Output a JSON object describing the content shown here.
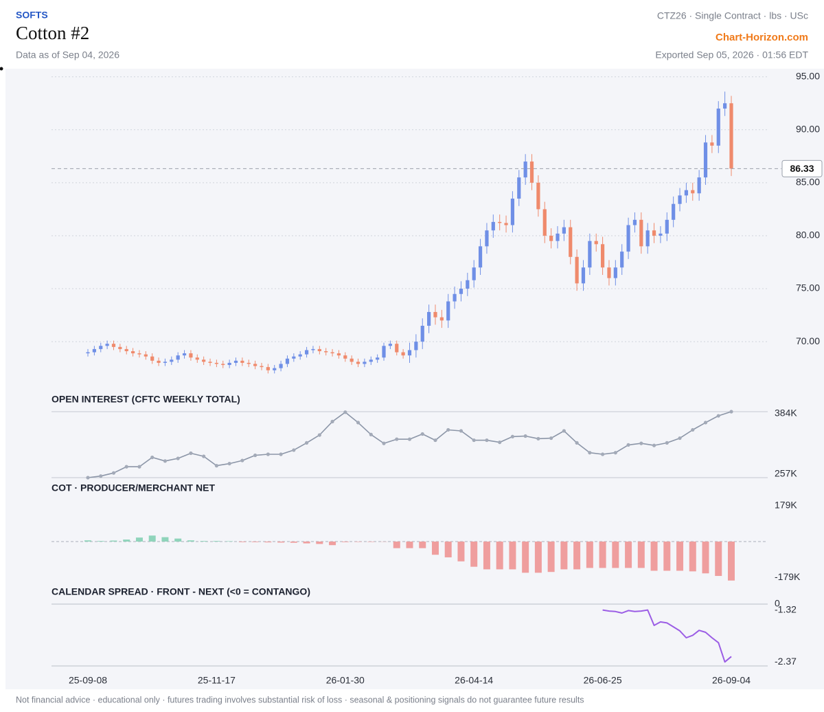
{
  "header": {
    "sector": "SOFTS",
    "title": "Cotton #2",
    "data_as_of": "Data as of Sep 04, 2026",
    "contract": "CTZ26 · Single Contract · lbs · USc",
    "brand": "Chart-Horizon.com",
    "exported": "Exported Sep 05, 2026 · 01:56 EDT"
  },
  "footer": "Not financial advice · educational only · futures trading involves substantial risk of loss · seasonal & positioning signals do not guarantee future results",
  "chart_data": [
    {
      "type": "candlestick",
      "categories": [
        "25-09-08",
        null,
        null,
        null,
        null,
        null,
        null,
        null,
        null,
        null,
        null,
        null,
        null,
        null,
        null,
        null,
        null,
        null,
        null,
        null,
        "25-11-17",
        null,
        null,
        null,
        null,
        null,
        null,
        null,
        null,
        null,
        null,
        null,
        null,
        null,
        null,
        null,
        null,
        null,
        null,
        null,
        "26-01-30",
        null,
        null,
        null,
        null,
        null,
        null,
        null,
        null,
        null,
        null,
        null,
        null,
        null,
        null,
        null,
        null,
        null,
        null,
        null,
        "26-04-14",
        null,
        null,
        null,
        null,
        null,
        null,
        null,
        null,
        null,
        null,
        null,
        null,
        null,
        null,
        null,
        null,
        null,
        null,
        null,
        "26-06-25",
        null,
        null,
        null,
        null,
        null,
        null,
        null,
        null,
        null,
        null,
        null,
        null,
        null,
        null,
        null,
        null,
        null,
        null,
        null,
        "26-09-04"
      ],
      "open": [
        68.9,
        69.0,
        69.3,
        69.6,
        69.8,
        69.5,
        69.3,
        69.1,
        68.9,
        68.8,
        68.6,
        68.2,
        68.0,
        68.1,
        68.3,
        68.7,
        68.9,
        68.5,
        68.3,
        68.1,
        68.0,
        67.9,
        67.8,
        68.0,
        68.2,
        68.0,
        67.9,
        67.7,
        67.6,
        67.3,
        67.5,
        67.9,
        68.4,
        68.6,
        68.8,
        69.2,
        69.3,
        69.1,
        69.0,
        68.9,
        68.7,
        68.4,
        68.1,
        67.9,
        68.1,
        68.3,
        68.5,
        69.6,
        69.8,
        69.0,
        68.7,
        69.2,
        70.0,
        71.5,
        72.8,
        72.3,
        72.0,
        73.8,
        74.5,
        75.0,
        75.8,
        77.0,
        79.0,
        80.5,
        81.3,
        81.2,
        81.0,
        83.5,
        85.5,
        87.0,
        85.0,
        82.5,
        80.0,
        79.5,
        80.2,
        80.8,
        78.0,
        75.5,
        77.0,
        79.5,
        79.2,
        77.0,
        76.0,
        77.0,
        78.5,
        81.0,
        81.5,
        79.0,
        80.5,
        80.0,
        80.2,
        81.5,
        83.0,
        83.8,
        84.3,
        84.0,
        85.5,
        88.8,
        88.5,
        92.0,
        92.5
      ],
      "high": [
        69.3,
        69.6,
        69.9,
        70.1,
        70.1,
        69.8,
        69.6,
        69.4,
        69.2,
        69.1,
        68.9,
        68.5,
        68.4,
        68.6,
        69.0,
        69.2,
        69.2,
        68.8,
        68.6,
        68.4,
        68.3,
        68.2,
        68.3,
        68.5,
        68.5,
        68.3,
        68.2,
        68.0,
        67.9,
        67.8,
        68.2,
        68.7,
        68.9,
        69.1,
        69.5,
        69.6,
        69.6,
        69.4,
        69.3,
        69.2,
        69.0,
        68.7,
        68.4,
        68.4,
        68.6,
        68.8,
        69.9,
        70.1,
        70.1,
        69.3,
        69.9,
        70.7,
        72.2,
        73.5,
        73.5,
        73.0,
        74.5,
        75.2,
        75.7,
        76.5,
        77.7,
        79.7,
        81.2,
        82.0,
        82.0,
        81.9,
        84.2,
        86.2,
        87.7,
        87.7,
        85.7,
        83.2,
        80.7,
        80.9,
        81.5,
        81.5,
        78.7,
        77.7,
        80.2,
        80.2,
        79.9,
        77.7,
        77.7,
        79.2,
        81.7,
        82.2,
        82.2,
        81.2,
        81.2,
        80.9,
        82.2,
        83.7,
        84.5,
        85.0,
        85.0,
        86.2,
        89.5,
        89.5,
        92.7,
        93.6,
        93.2
      ],
      "low": [
        68.6,
        68.7,
        69.0,
        69.3,
        69.2,
        69.0,
        68.8,
        68.6,
        68.5,
        68.3,
        67.9,
        67.7,
        67.7,
        67.8,
        68.0,
        68.4,
        68.2,
        68.0,
        67.8,
        67.7,
        67.6,
        67.5,
        67.5,
        67.7,
        67.7,
        67.6,
        67.4,
        67.3,
        67.0,
        67.0,
        67.2,
        67.6,
        68.1,
        68.3,
        68.5,
        68.9,
        68.8,
        68.7,
        68.6,
        68.4,
        68.1,
        67.8,
        67.6,
        67.6,
        67.8,
        68.0,
        68.2,
        69.3,
        68.7,
        68.4,
        68.0,
        68.5,
        69.3,
        70.8,
        71.6,
        71.3,
        71.3,
        73.1,
        73.8,
        74.3,
        75.1,
        76.3,
        78.3,
        79.8,
        80.5,
        80.3,
        80.3,
        82.8,
        84.8,
        84.3,
        81.8,
        79.3,
        78.8,
        78.8,
        79.5,
        77.3,
        74.8,
        74.8,
        76.3,
        78.5,
        76.3,
        75.3,
        75.3,
        76.3,
        77.8,
        80.3,
        78.3,
        78.3,
        79.3,
        79.3,
        79.5,
        80.8,
        82.3,
        83.1,
        83.3,
        83.3,
        84.8,
        87.8,
        87.8,
        91.3,
        85.63
      ],
      "close": [
        69.0,
        69.3,
        69.6,
        69.8,
        69.5,
        69.3,
        69.1,
        68.9,
        68.8,
        68.6,
        68.2,
        68.0,
        68.1,
        68.3,
        68.7,
        68.9,
        68.5,
        68.3,
        68.1,
        68.0,
        67.9,
        67.8,
        68.0,
        68.2,
        68.0,
        67.9,
        67.7,
        67.6,
        67.3,
        67.5,
        67.9,
        68.4,
        68.6,
        68.8,
        69.2,
        69.3,
        69.1,
        69.0,
        68.9,
        68.7,
        68.4,
        68.1,
        67.9,
        68.1,
        68.3,
        68.5,
        69.6,
        69.8,
        69.0,
        68.7,
        69.2,
        70.0,
        71.5,
        72.8,
        72.3,
        72.0,
        73.8,
        74.5,
        75.0,
        75.8,
        77.0,
        79.0,
        80.5,
        81.3,
        81.2,
        81.0,
        83.5,
        85.5,
        87.0,
        85.0,
        82.5,
        80.0,
        79.5,
        80.2,
        80.8,
        78.0,
        75.5,
        77.0,
        79.5,
        79.2,
        77.0,
        76.0,
        77.0,
        78.5,
        81.0,
        81.5,
        79.0,
        80.5,
        80.0,
        80.2,
        81.5,
        83.0,
        83.8,
        84.3,
        84.0,
        85.5,
        88.8,
        88.5,
        92.0,
        92.5,
        86.33
      ],
      "up_color": "#6f8fe6",
      "down_color": "#ef8a6c",
      "ylim": [
        66.7,
        95.5
      ],
      "yticks": [
        {
          "value": 70,
          "label": "70.00"
        },
        {
          "value": 75,
          "label": "75.00"
        },
        {
          "value": 80,
          "label": "80.00"
        },
        {
          "value": 85,
          "label": "85.00"
        },
        {
          "value": 90,
          "label": "90.00"
        },
        {
          "value": 95,
          "label": "95.00"
        }
      ],
      "last_price": 86.33,
      "grid": true
    },
    {
      "type": "line",
      "title": "OPEN INTEREST (CFTC WEEKLY TOTAL)",
      "values": [
        257000,
        260000,
        266000,
        278000,
        278000,
        296000,
        289000,
        294000,
        304000,
        298000,
        280000,
        284000,
        290000,
        300000,
        302000,
        302000,
        310000,
        324000,
        339000,
        365000,
        383000,
        363000,
        340000,
        323000,
        331000,
        331000,
        341000,
        329000,
        349000,
        347000,
        329000,
        329000,
        325000,
        336000,
        337000,
        332000,
        333000,
        347000,
        324000,
        305000,
        302000,
        305000,
        320000,
        323000,
        319000,
        324000,
        333000,
        349000,
        363000,
        376000,
        384000
      ],
      "color": "#8b95a7",
      "ylim": [
        257000,
        384000
      ],
      "yticks": [
        {
          "value": 257000,
          "label": "257K"
        },
        {
          "value": 384000,
          "label": "384K"
        }
      ]
    },
    {
      "type": "bar",
      "title": "COT · PRODUCER/MERCHANT NET",
      "values": [
        6000,
        3000,
        5000,
        10000,
        20000,
        30000,
        22000,
        15000,
        6000,
        3000,
        3000,
        2000,
        -3000,
        -3000,
        -4000,
        -5000,
        -6000,
        -9000,
        -12000,
        -18000,
        -3000,
        -2000,
        -2000,
        -1000,
        -33000,
        -33000,
        -33000,
        -66000,
        -79000,
        -99000,
        -126000,
        -139000,
        -139000,
        -139000,
        -156000,
        -156000,
        -152000,
        -139000,
        -139000,
        -132000,
        -132000,
        -132000,
        -132000,
        -132000,
        -146000,
        -146000,
        -146000,
        -149000,
        -159000,
        -172000,
        -195000
      ],
      "positive_color": "#8fd4bb",
      "negative_color": "#ef9e9e",
      "ylim": [
        -220000,
        220000
      ],
      "yticks": [
        {
          "value": -179000,
          "label": "-179K"
        },
        {
          "value": 179000,
          "label": "179K"
        }
      ]
    },
    {
      "type": "line",
      "title": "CALENDAR SPREAD · FRONT - NEXT (<0 = CONTANGO)",
      "values": [
        -1.32,
        -1.34,
        -1.35,
        -1.38,
        -1.33,
        -1.35,
        -1.34,
        -1.32,
        -1.63,
        -1.56,
        -1.58,
        -1.66,
        -1.74,
        -1.88,
        -1.83,
        -1.73,
        -1.77,
        -1.88,
        -1.98,
        -2.37,
        -2.26
      ],
      "color": "#9b5de5",
      "ylim": [
        -2.45,
        -1.2
      ],
      "yticks": [
        -2.37,
        -1.32
      ],
      "reference_line": 0
    }
  ]
}
